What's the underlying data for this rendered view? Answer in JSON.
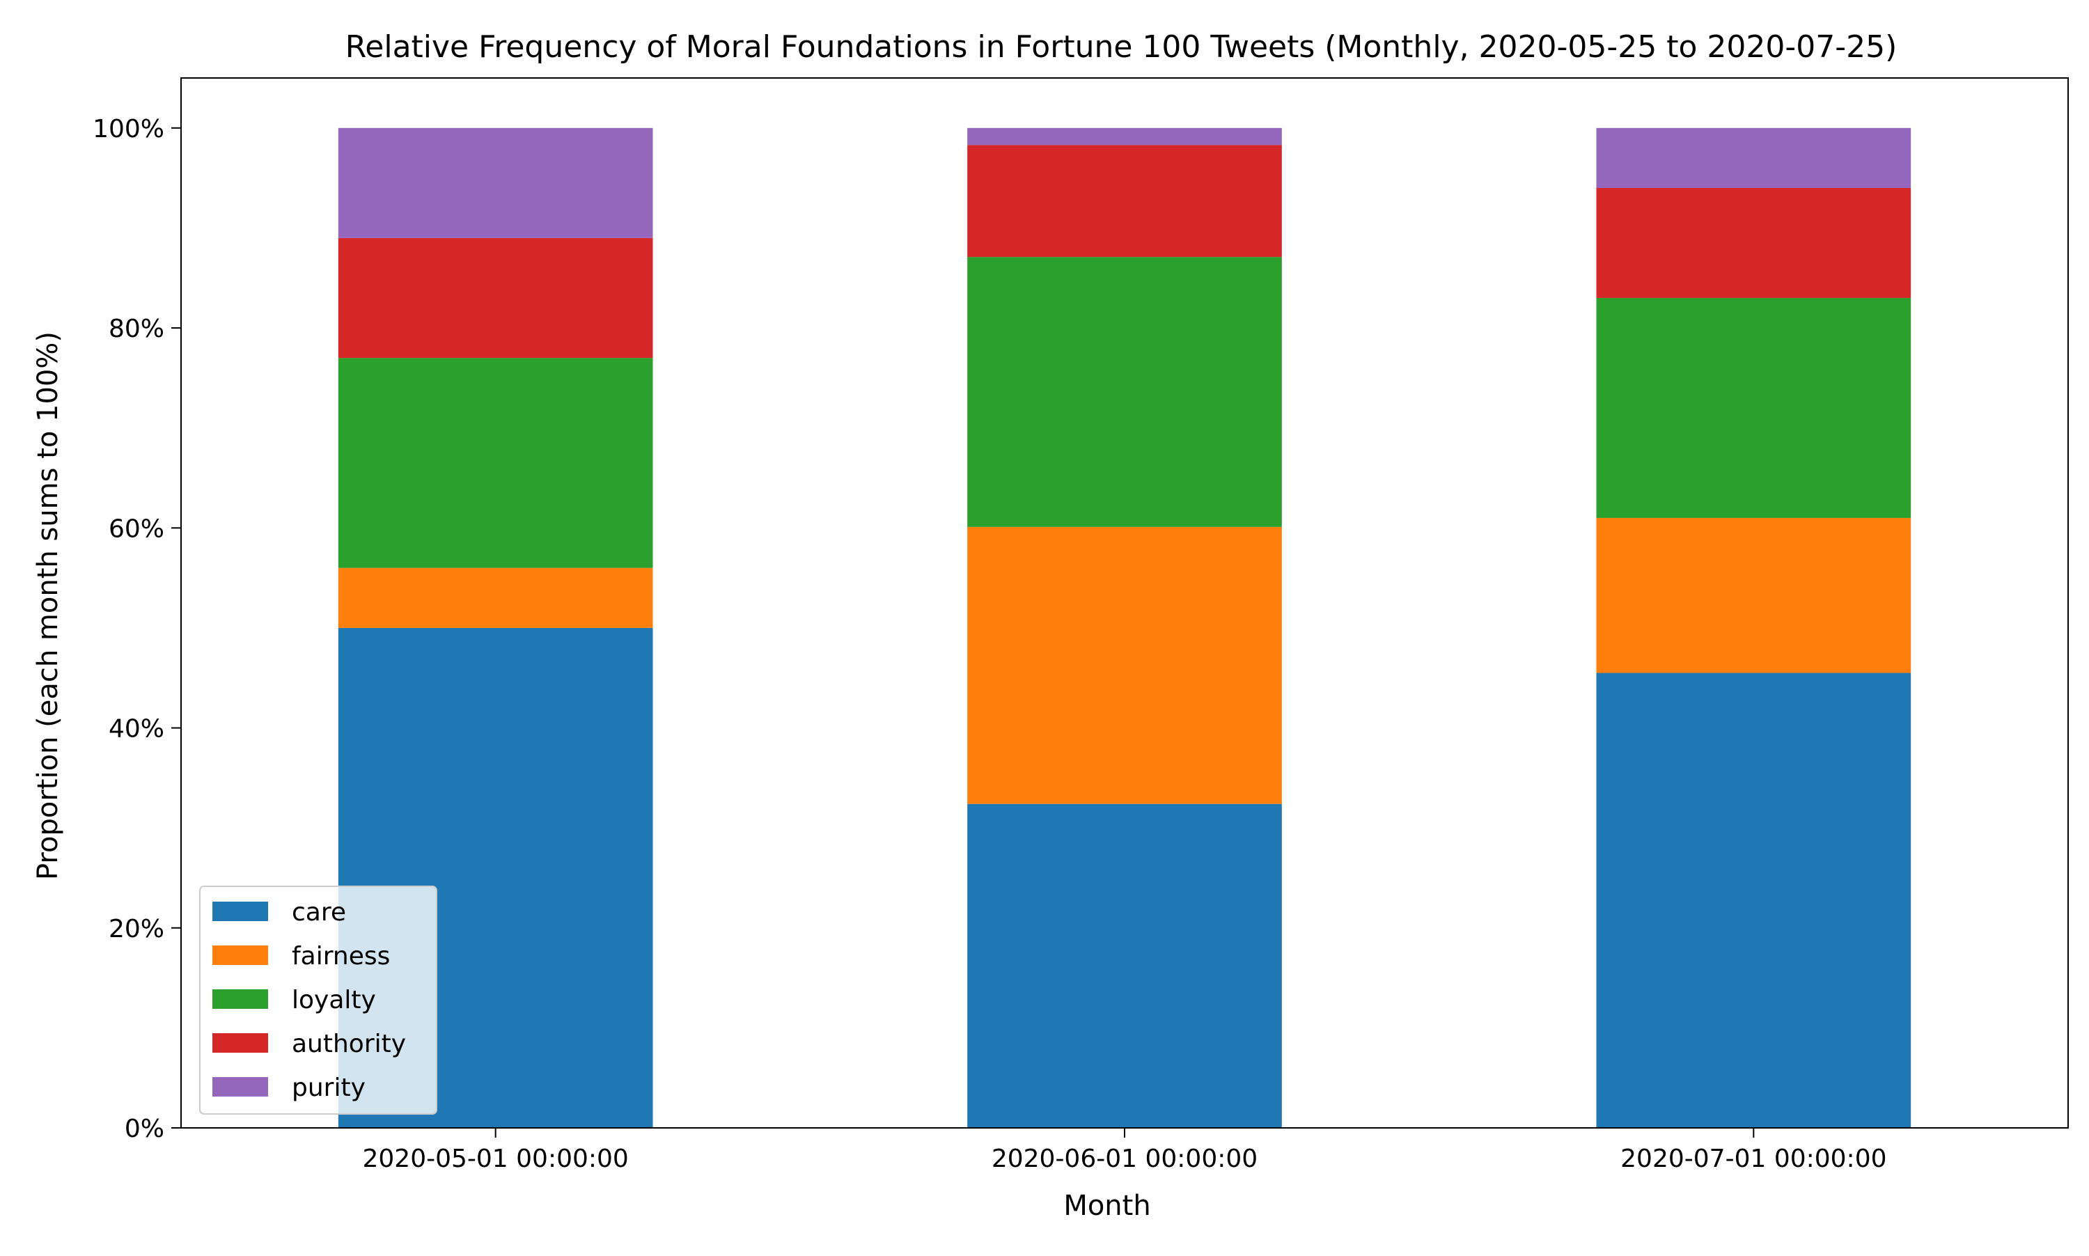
{
  "chart_data": {
    "type": "bar",
    "stacked": true,
    "title": "Relative Frequency of Moral Foundations in Fortune 100 Tweets (Monthly, 2020-05-25 to 2020-07-25)",
    "xlabel": "Month",
    "ylabel": "Proportion (each month sums to 100%)",
    "ylim": [
      0,
      1.05
    ],
    "yticks": [
      0,
      0.2,
      0.4,
      0.6,
      0.8,
      1.0
    ],
    "ytick_labels": [
      "0%",
      "20%",
      "40%",
      "60%",
      "80%",
      "100%"
    ],
    "categories": [
      "2020-05-01 00:00:00",
      "2020-06-01 00:00:00",
      "2020-07-01 00:00:00"
    ],
    "legend_position": "lower-left",
    "grid": false,
    "series": [
      {
        "name": "care",
        "color": "#1f77b4",
        "values": [
          0.5,
          0.324,
          0.455
        ]
      },
      {
        "name": "fairness",
        "color": "#ff7f0e",
        "values": [
          0.06,
          0.277,
          0.155
        ]
      },
      {
        "name": "loyalty",
        "color": "#2ca02c",
        "values": [
          0.21,
          0.27,
          0.22
        ]
      },
      {
        "name": "authority",
        "color": "#d62728",
        "values": [
          0.12,
          0.112,
          0.11
        ]
      },
      {
        "name": "purity",
        "color": "#9467bd",
        "values": [
          0.11,
          0.017,
          0.06
        ]
      }
    ]
  }
}
